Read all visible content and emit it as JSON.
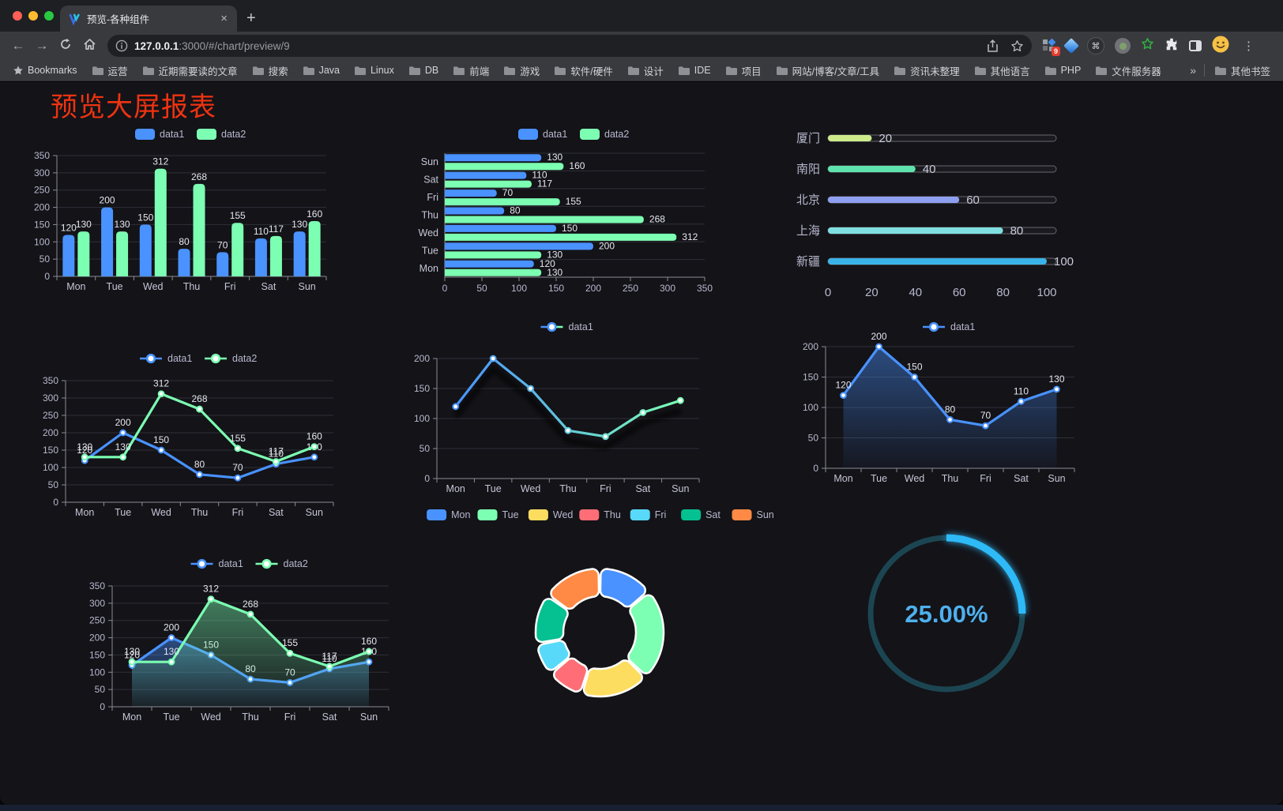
{
  "browser": {
    "tab": {
      "title": "预览-各种组件",
      "close_label": "×",
      "new_tab_label": "+"
    },
    "address": {
      "host": "127.0.0.1",
      "rest": ":3000/#/chart/preview/9"
    },
    "extensions_badge": "9",
    "menu_dots": "⋮",
    "bookmarks_label": "Bookmarks",
    "bookmarks": [
      "运营",
      "近期需要读的文章",
      "搜索",
      "Java",
      "Linux",
      "DB",
      "前端",
      "游戏",
      "软件/硬件",
      "设计",
      "IDE",
      "项目",
      "网站/博客/文章/工具",
      "资讯未整理",
      "其他语言",
      "PHP",
      "文件服务器"
    ],
    "bookmarks_overflow": "»",
    "other_bookmarks": "其他书签"
  },
  "page": {
    "title": "预览大屏报表"
  },
  "palette": {
    "text": "#b9b8ce",
    "grid": "#2f2f37",
    "axis": "#8b8b94",
    "label": "#e6e6ef",
    "category": "#c6c5d6"
  },
  "chart_data": [
    {
      "id": "grouped-bar",
      "type": "bar",
      "categories": [
        "Mon",
        "Tue",
        "Wed",
        "Thu",
        "Fri",
        "Sat",
        "Sun"
      ],
      "series": [
        {
          "name": "data1",
          "color": "#4992ff",
          "values": [
            120,
            200,
            150,
            80,
            70,
            110,
            130
          ]
        },
        {
          "name": "data2",
          "color": "#7cffb2",
          "values": [
            130,
            130,
            312,
            268,
            155,
            117,
            160
          ]
        }
      ],
      "ylim": [
        0,
        350
      ],
      "ytick": 50,
      "legend_position": "top",
      "value_labels": true
    },
    {
      "id": "horizontal-bar",
      "type": "hbar",
      "categories": [
        "Mon",
        "Tue",
        "Wed",
        "Thu",
        "Fri",
        "Sat",
        "Sun"
      ],
      "series": [
        {
          "name": "data1",
          "color": "#4992ff",
          "values": [
            120,
            200,
            150,
            80,
            70,
            110,
            130
          ]
        },
        {
          "name": "data2",
          "color": "#7cffb2",
          "values": [
            130,
            130,
            312,
            268,
            155,
            117,
            160
          ]
        }
      ],
      "xlim": [
        0,
        350
      ],
      "xtick": 50,
      "legend_position": "top",
      "value_labels": true
    },
    {
      "id": "city-progress",
      "type": "progress",
      "max": 100,
      "axis_ticks": [
        0,
        20,
        40,
        60,
        80,
        100
      ],
      "rows": [
        {
          "label": "厦门",
          "value": 20,
          "color": "#cdeb8b"
        },
        {
          "label": "南阳",
          "value": 40,
          "color": "#5fe3ad"
        },
        {
          "label": "北京",
          "value": 60,
          "color": "#8f9ff0"
        },
        {
          "label": "上海",
          "value": 80,
          "color": "#7fdfe0"
        },
        {
          "label": "新疆",
          "value": 100,
          "color": "#3ab4e8"
        }
      ]
    },
    {
      "id": "line-two-series",
      "type": "line",
      "categories": [
        "Mon",
        "Tue",
        "Wed",
        "Thu",
        "Fri",
        "Sat",
        "Sun"
      ],
      "series": [
        {
          "name": "data1",
          "color": "#4992ff",
          "values": [
            120,
            200,
            150,
            80,
            70,
            110,
            130
          ]
        },
        {
          "name": "data2",
          "color": "#7cffb2",
          "values": [
            130,
            130,
            312,
            268,
            155,
            117,
            160
          ]
        }
      ],
      "ylim": [
        0,
        350
      ],
      "ytick": 50,
      "legend_position": "top",
      "value_labels": true
    },
    {
      "id": "gradient-line",
      "type": "line",
      "categories": [
        "Mon",
        "Tue",
        "Wed",
        "Thu",
        "Fri",
        "Sat",
        "Sun"
      ],
      "series": [
        {
          "name": "data1",
          "gradient": [
            "#4992ff",
            "#7cffb2"
          ],
          "shadow": true,
          "values": [
            120,
            200,
            150,
            80,
            70,
            110,
            130
          ]
        }
      ],
      "ylim": [
        0,
        200
      ],
      "ytick": 50,
      "legend_position": "top",
      "value_labels": false
    },
    {
      "id": "area-line",
      "type": "line",
      "categories": [
        "Mon",
        "Tue",
        "Wed",
        "Thu",
        "Fri",
        "Sat",
        "Sun"
      ],
      "series": [
        {
          "name": "data1",
          "color": "#4992ff",
          "area": true,
          "values": [
            120,
            200,
            150,
            80,
            70,
            110,
            130
          ]
        }
      ],
      "ylim": [
        0,
        200
      ],
      "ytick": 50,
      "legend_position": "top",
      "value_labels": true
    },
    {
      "id": "two-series-area",
      "type": "line",
      "categories": [
        "Mon",
        "Tue",
        "Wed",
        "Thu",
        "Fri",
        "Sat",
        "Sun"
      ],
      "series": [
        {
          "name": "data1",
          "color": "#4992ff",
          "area": true,
          "values": [
            120,
            200,
            150,
            80,
            70,
            110,
            130
          ]
        },
        {
          "name": "data2",
          "color": "#7cffb2",
          "area": true,
          "values": [
            130,
            130,
            312,
            268,
            155,
            117,
            160
          ]
        }
      ],
      "ylim": [
        0,
        350
      ],
      "ytick": 50,
      "legend_position": "top",
      "value_labels": true
    },
    {
      "id": "weekday-donut",
      "type": "pie",
      "legend_position": "top",
      "items": [
        {
          "name": "Mon",
          "value": 120,
          "color": "#4992ff"
        },
        {
          "name": "Tue",
          "value": 200,
          "color": "#7cffb2"
        },
        {
          "name": "Wed",
          "value": 150,
          "color": "#fddd60"
        },
        {
          "name": "Thu",
          "value": 80,
          "color": "#ff6e76"
        },
        {
          "name": "Fri",
          "value": 70,
          "color": "#58d9f9"
        },
        {
          "name": "Sat",
          "value": 110,
          "color": "#05c091"
        },
        {
          "name": "Sun",
          "value": 130,
          "color": "#ff8a45"
        }
      ]
    },
    {
      "id": "percent-gauge",
      "type": "gauge",
      "value": 25,
      "max": 100,
      "label": "25.00%",
      "color": "#2eb9f7",
      "track_color": "#1c4552",
      "text_color": "#4fb0ee"
    }
  ]
}
